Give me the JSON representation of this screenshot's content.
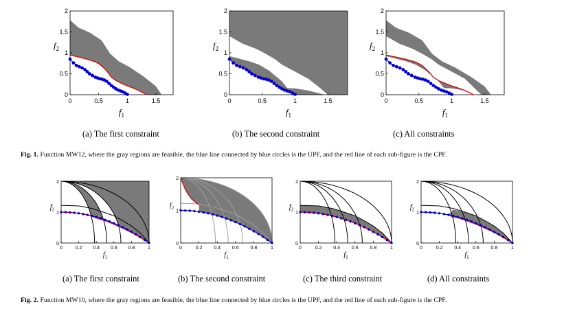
{
  "figure1": {
    "caption_label": "Fig. 1.",
    "caption_text": "Function MW12, where the gray regions are feasible, the blue line connected by blue circles is the UPF, and the red line of each sub-figure is the CPF.",
    "subcaptions": [
      "(a) The first constraint",
      "(b) The second constraint",
      "(c) All constraints"
    ]
  },
  "figure2": {
    "caption_label": "Fig. 2.",
    "caption_text": "Function MW10, where the gray regions are feasible, the blue line connected by blue circles is the UPF, and the red line of each sub-figure is the CPF.",
    "subcaptions": [
      "(a) The first constraint",
      "(b) The second constraint",
      "(c) The third constraint",
      "(d) All constraints"
    ]
  },
  "chart_data": [
    {
      "type": "scatter",
      "id": "fig1a",
      "xlabel": "f1",
      "ylabel": "f2",
      "xlim": [
        0,
        1.8
      ],
      "ylim": [
        0,
        2
      ],
      "xticks": [
        "0",
        "0.5",
        "1",
        "1.5"
      ],
      "yticks": [
        "0",
        "0.5",
        "1",
        "1.5",
        "2"
      ],
      "series": [
        {
          "name": "UPF",
          "color": "#0000cc",
          "x": [
            0,
            0.06,
            0.11,
            0.16,
            0.21,
            0.26,
            0.3,
            0.34,
            0.39,
            0.44,
            0.48,
            0.52,
            0.56,
            0.6,
            0.64,
            0.68,
            0.72,
            0.76,
            0.8,
            0.84,
            0.88,
            0.92,
            0.96,
            1.0
          ],
          "y": [
            0.85,
            0.76,
            0.7,
            0.67,
            0.64,
            0.6,
            0.55,
            0.5,
            0.46,
            0.42,
            0.4,
            0.38,
            0.37,
            0.35,
            0.32,
            0.27,
            0.22,
            0.18,
            0.14,
            0.11,
            0.09,
            0.07,
            0.04,
            0.01
          ]
        },
        {
          "name": "CPF",
          "color": "#dd0000",
          "x": [
            0,
            0.15,
            0.3,
            0.45,
            0.55,
            0.65,
            0.72,
            0.8,
            0.9,
            1.0,
            1.1,
            1.2,
            1.3,
            1.33
          ],
          "y": [
            0.95,
            0.9,
            0.85,
            0.78,
            0.7,
            0.55,
            0.42,
            0.34,
            0.27,
            0.21,
            0.16,
            0.1,
            0.03,
            0
          ]
        }
      ]
    },
    {
      "type": "scatter",
      "id": "fig1b",
      "xlabel": "f1",
      "ylabel": "f2",
      "xlim": [
        0,
        1.8
      ],
      "ylim": [
        0,
        2
      ],
      "xticks": [
        "0",
        "0.5",
        "1",
        "1.5"
      ],
      "yticks": [
        "0",
        "0.5",
        "1",
        "1.5",
        "2"
      ],
      "series": [
        {
          "name": "UPF",
          "color": "#0000cc",
          "x": [
            0,
            0.06,
            0.11,
            0.16,
            0.21,
            0.26,
            0.3,
            0.34,
            0.39,
            0.44,
            0.48,
            0.52,
            0.56,
            0.6,
            0.64,
            0.68,
            0.72,
            0.76,
            0.8,
            0.84,
            0.88,
            0.92,
            0.96,
            1.0
          ],
          "y": [
            0.85,
            0.76,
            0.7,
            0.67,
            0.64,
            0.6,
            0.55,
            0.5,
            0.46,
            0.42,
            0.4,
            0.38,
            0.37,
            0.35,
            0.32,
            0.27,
            0.22,
            0.18,
            0.14,
            0.11,
            0.09,
            0.07,
            0.04,
            0.01
          ]
        },
        {
          "name": "CPF",
          "color": "#dd0000",
          "x": [
            0,
            0.11,
            0.21,
            0.3,
            0.39,
            0.48,
            0.56,
            0.64,
            0.72,
            0.8,
            0.88,
            0.96,
            1.0
          ],
          "y": [
            0.85,
            0.7,
            0.64,
            0.55,
            0.46,
            0.4,
            0.37,
            0.32,
            0.22,
            0.14,
            0.09,
            0.04,
            0.01
          ]
        }
      ]
    },
    {
      "type": "scatter",
      "id": "fig1c",
      "xlabel": "f1",
      "ylabel": "f2",
      "xlim": [
        0,
        1.8
      ],
      "ylim": [
        0,
        2
      ],
      "xticks": [
        "0",
        "0.5",
        "1",
        "1.5"
      ],
      "yticks": [
        "0",
        "0.5",
        "1",
        "1.5",
        "2"
      ],
      "series": [
        {
          "name": "UPF",
          "color": "#0000cc",
          "x": [
            0,
            0.06,
            0.11,
            0.16,
            0.21,
            0.26,
            0.3,
            0.34,
            0.39,
            0.44,
            0.48,
            0.52,
            0.56,
            0.6,
            0.64,
            0.68,
            0.72,
            0.76,
            0.8,
            0.84,
            0.88,
            0.92,
            0.96,
            1.0
          ],
          "y": [
            0.85,
            0.76,
            0.7,
            0.67,
            0.64,
            0.6,
            0.55,
            0.5,
            0.46,
            0.42,
            0.4,
            0.38,
            0.37,
            0.35,
            0.32,
            0.27,
            0.22,
            0.18,
            0.14,
            0.11,
            0.09,
            0.07,
            0.04,
            0.01
          ]
        },
        {
          "name": "CPF",
          "color": "#dd0000",
          "x": [
            0,
            0.15,
            0.3,
            0.45,
            0.55,
            0.65,
            0.72,
            0.8,
            0.9,
            1.0,
            1.1,
            1.2,
            1.3,
            1.33
          ],
          "y": [
            0.95,
            0.9,
            0.85,
            0.78,
            0.7,
            0.55,
            0.42,
            0.34,
            0.27,
            0.21,
            0.16,
            0.1,
            0.03,
            0
          ]
        }
      ]
    },
    {
      "type": "scatter",
      "id": "fig2a",
      "xlabel": "f1",
      "ylabel": "f2",
      "xlim": [
        0,
        1
      ],
      "ylim": [
        0,
        2
      ],
      "xticks": [
        "0",
        "0.2",
        "0.4",
        "0.6",
        "0.8",
        "1"
      ],
      "yticks": [
        "0",
        "1",
        "2"
      ],
      "series": [
        {
          "name": "UPF",
          "color": "#0000cc",
          "x": [
            0,
            0.05,
            0.1,
            0.15,
            0.2,
            0.25,
            0.3,
            0.35,
            0.4,
            0.45,
            0.5,
            0.55,
            0.6,
            0.65,
            0.7,
            0.75,
            0.8,
            0.85,
            0.9,
            0.95,
            1.0
          ],
          "y": [
            1.0,
            0.997,
            0.99,
            0.978,
            0.96,
            0.938,
            0.91,
            0.878,
            0.84,
            0.798,
            0.75,
            0.698,
            0.64,
            0.578,
            0.51,
            0.438,
            0.36,
            0.278,
            0.19,
            0.098,
            0
          ]
        },
        {
          "name": "CPF",
          "color": "#dd0000",
          "x": [
            0,
            0.1,
            0.2,
            0.3,
            0.35,
            0.4,
            0.5,
            0.6,
            0.7,
            0.8,
            0.9,
            1.0
          ],
          "y": [
            1.0,
            0.99,
            0.96,
            0.91,
            0.86,
            0.81,
            0.72,
            0.61,
            0.48,
            0.34,
            0.18,
            0
          ]
        }
      ]
    },
    {
      "type": "scatter",
      "id": "fig2b",
      "xlabel": "f1",
      "ylabel": "f2",
      "xlim": [
        0,
        1
      ],
      "ylim": [
        0,
        2
      ],
      "xticks": [
        "0",
        "0.2",
        "0.4",
        "0.6",
        "0.8",
        "1"
      ],
      "yticks": [
        "0",
        "1",
        "2"
      ],
      "series": [
        {
          "name": "UPF",
          "color": "#0000cc",
          "x": [
            0,
            0.05,
            0.1,
            0.15,
            0.2,
            0.25,
            0.3,
            0.35,
            0.4,
            0.45,
            0.5,
            0.55,
            0.6,
            0.65,
            0.7,
            0.75,
            0.8,
            0.85,
            0.9,
            0.95,
            1.0
          ],
          "y": [
            1.0,
            0.997,
            0.99,
            0.978,
            0.96,
            0.938,
            0.91,
            0.878,
            0.84,
            0.798,
            0.75,
            0.698,
            0.64,
            0.578,
            0.51,
            0.438,
            0.36,
            0.278,
            0.19,
            0.098,
            0
          ]
        },
        {
          "name": "CPF",
          "color": "#dd0000",
          "x": [
            0,
            0.02,
            0.05,
            0.08,
            0.12,
            0.16,
            0.2
          ],
          "y": [
            2.0,
            1.85,
            1.65,
            1.5,
            1.35,
            1.25,
            1.18
          ]
        }
      ]
    },
    {
      "type": "scatter",
      "id": "fig2c",
      "xlabel": "f1",
      "ylabel": "f2",
      "xlim": [
        0,
        1
      ],
      "ylim": [
        0,
        2
      ],
      "xticks": [
        "0",
        "0.2",
        "0.4",
        "0.6",
        "0.8",
        "1"
      ],
      "yticks": [
        "0",
        "1",
        "2"
      ],
      "series": [
        {
          "name": "UPF",
          "color": "#0000cc",
          "x": [
            0,
            0.05,
            0.1,
            0.15,
            0.2,
            0.25,
            0.3,
            0.35,
            0.4,
            0.45,
            0.5,
            0.55,
            0.6,
            0.65,
            0.7,
            0.75,
            0.8,
            0.85,
            0.9,
            0.95,
            1.0
          ],
          "y": [
            1.0,
            0.997,
            0.99,
            0.978,
            0.96,
            0.938,
            0.91,
            0.878,
            0.84,
            0.798,
            0.75,
            0.698,
            0.64,
            0.578,
            0.51,
            0.438,
            0.36,
            0.278,
            0.19,
            0.098,
            0
          ]
        },
        {
          "name": "CPF",
          "color": "#dd0000",
          "x": [
            0,
            0.1,
            0.2,
            0.3,
            0.4,
            0.5,
            0.6,
            0.7,
            0.8,
            0.9,
            1.0
          ],
          "y": [
            1.0,
            0.99,
            0.96,
            0.91,
            0.84,
            0.75,
            0.64,
            0.51,
            0.36,
            0.19,
            0
          ]
        }
      ]
    },
    {
      "type": "scatter",
      "id": "fig2d",
      "xlabel": "f1",
      "ylabel": "f2",
      "xlim": [
        0,
        1
      ],
      "ylim": [
        0,
        2
      ],
      "xticks": [
        "0",
        "0.2",
        "0.4",
        "0.6",
        "0.8",
        "1"
      ],
      "yticks": [
        "0",
        "1",
        "2"
      ],
      "series": [
        {
          "name": "UPF",
          "color": "#0000cc",
          "x": [
            0,
            0.05,
            0.1,
            0.15,
            0.2,
            0.25,
            0.3,
            0.35,
            0.4,
            0.45,
            0.5,
            0.55,
            0.6,
            0.65,
            0.7,
            0.75,
            0.8,
            0.85,
            0.9,
            0.95,
            1.0
          ],
          "y": [
            1.0,
            0.997,
            0.99,
            0.978,
            0.96,
            0.938,
            0.91,
            0.878,
            0.84,
            0.798,
            0.75,
            0.698,
            0.64,
            0.578,
            0.51,
            0.438,
            0.36,
            0.278,
            0.19,
            0.098,
            0
          ]
        },
        {
          "name": "CPF",
          "color": "#dd0000",
          "x": [
            0.3,
            0.35,
            0.4,
            0.5,
            0.6,
            0.7,
            0.8,
            0.9,
            1.0
          ],
          "y": [
            0.91,
            0.84,
            0.82,
            0.72,
            0.61,
            0.48,
            0.34,
            0.18,
            0
          ]
        }
      ]
    }
  ]
}
